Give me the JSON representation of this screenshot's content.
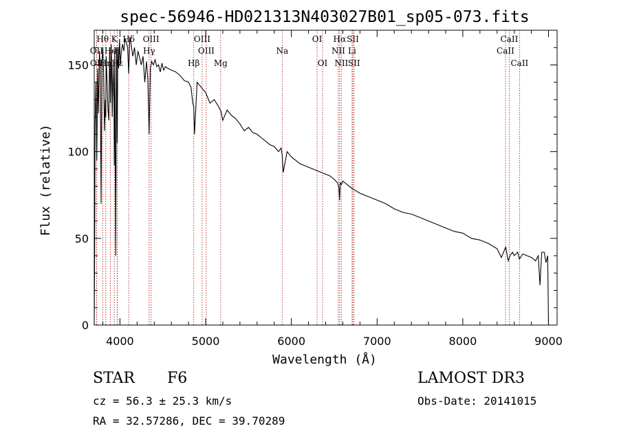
{
  "chart_data": {
    "type": "line",
    "title": "spec-56946-HD021313N403027B01_sp05-073.fits",
    "xlabel": "Wavelength (Å)",
    "ylabel": "Flux (relative)",
    "xlim": [
      3700,
      9100
    ],
    "ylim": [
      0,
      170
    ],
    "xticks": [
      4000,
      5000,
      6000,
      7000,
      8000,
      9000
    ],
    "yticks": [
      0,
      50,
      100,
      150
    ],
    "grid": false,
    "series": [
      {
        "name": "spectrum",
        "x": [
          3700,
          3705,
          3710,
          3720,
          3730,
          3740,
          3750,
          3760,
          3770,
          3780,
          3790,
          3800,
          3810,
          3820,
          3830,
          3835,
          3840,
          3850,
          3860,
          3870,
          3880,
          3889,
          3900,
          3910,
          3920,
          3930,
          3934,
          3940,
          3950,
          3960,
          3968,
          3975,
          3985,
          3995,
          4005,
          4015,
          4030,
          4045,
          4060,
          4075,
          4090,
          4102,
          4115,
          4130,
          4150,
          4170,
          4190,
          4210,
          4230,
          4250,
          4270,
          4290,
          4310,
          4325,
          4340,
          4355,
          4370,
          4390,
          4410,
          4430,
          4450,
          4470,
          4490,
          4510,
          4530,
          4560,
          4600,
          4650,
          4700,
          4750,
          4800,
          4830,
          4850,
          4861,
          4870,
          4900,
          4950,
          5000,
          5050,
          5100,
          5150,
          5180,
          5200,
          5250,
          5300,
          5350,
          5400,
          5450,
          5500,
          5550,
          5600,
          5650,
          5700,
          5750,
          5800,
          5850,
          5880,
          5893,
          5905,
          5950,
          6000,
          6100,
          6200,
          6300,
          6400,
          6450,
          6500,
          6540,
          6555,
          6563,
          6570,
          6585,
          6600,
          6650,
          6700,
          6800,
          6900,
          7000,
          7100,
          7200,
          7300,
          7400,
          7500,
          7600,
          7700,
          7800,
          7900,
          8000,
          8100,
          8200,
          8300,
          8400,
          8450,
          8500,
          8530,
          8550,
          8580,
          8600,
          8640,
          8660,
          8700,
          8750,
          8800,
          8850,
          8880,
          8900,
          8920,
          8950,
          8970,
          8990,
          9000
        ],
        "values": [
          0,
          42,
          115,
          140,
          95,
          148,
          122,
          158,
          150,
          70,
          152,
          160,
          145,
          112,
          130,
          120,
          155,
          140,
          125,
          118,
          160,
          128,
          162,
          120,
          150,
          130,
          92,
          158,
          40,
          160,
          105,
          160,
          148,
          165,
          150,
          157,
          162,
          158,
          165,
          163,
          160,
          145,
          166,
          162,
          155,
          160,
          150,
          158,
          154,
          150,
          155,
          140,
          152,
          142,
          110,
          148,
          152,
          150,
          153,
          149,
          150,
          146,
          151,
          147,
          149,
          148,
          147,
          146,
          144,
          141,
          140,
          137,
          128,
          126,
          110,
          140,
          137,
          134,
          128,
          130,
          126,
          123,
          118,
          124,
          121,
          119,
          116,
          112,
          114,
          111,
          110,
          108,
          106,
          104,
          103,
          100,
          102,
          98,
          88,
          100,
          97,
          93,
          91,
          89,
          87,
          86,
          84,
          82,
          79,
          72,
          82,
          81,
          83,
          81,
          79,
          76,
          74,
          72,
          70,
          67,
          65,
          64,
          62,
          60,
          58,
          56,
          54,
          53,
          50,
          49,
          47,
          44,
          39,
          45,
          37,
          40,
          42,
          40,
          42,
          38,
          41,
          40,
          39,
          37,
          40,
          23,
          42,
          42,
          36,
          40,
          0
        ]
      }
    ],
    "line_markers": [
      {
        "label": "Hθ",
        "x": 3798,
        "row": 1
      },
      {
        "label": "OII",
        "x": 3727,
        "row": 2
      },
      {
        "label": "OII",
        "x": 3729,
        "row": 3
      },
      {
        "label": "He",
        "x": 3889,
        "row": 2
      },
      {
        "label": "Hn",
        "x": 3835,
        "row": 3
      },
      {
        "label": "K",
        "x": 3934,
        "row": 1
      },
      {
        "label": "H",
        "x": 3968,
        "row": 2
      },
      {
        "label": "Hε",
        "x": 3970,
        "row": 3
      },
      {
        "label": "Hδ",
        "x": 4102,
        "row": 1
      },
      {
        "label": "OIII",
        "x": 4363,
        "row": 1
      },
      {
        "label": "Hγ",
        "x": 4340,
        "row": 2
      },
      {
        "label": "OIII",
        "x": 4959,
        "row": 1
      },
      {
        "label": "OIII",
        "x": 5007,
        "row": 2
      },
      {
        "label": "Hβ",
        "x": 4861,
        "row": 3
      },
      {
        "label": "Mg",
        "x": 5175,
        "row": 3
      },
      {
        "label": "Na",
        "x": 5893,
        "row": 2
      },
      {
        "label": "OI",
        "x": 6300,
        "row": 1
      },
      {
        "label": "OI",
        "x": 6364,
        "row": 3
      },
      {
        "label": "Hα",
        "x": 6563,
        "row": 1
      },
      {
        "label": "NII",
        "x": 6548,
        "row": 2
      },
      {
        "label": "NII",
        "x": 6583,
        "row": 3
      },
      {
        "label": "SII",
        "x": 6717,
        "row": 1
      },
      {
        "label": "Li",
        "x": 6708,
        "row": 2
      },
      {
        "label": "SII",
        "x": 6731,
        "row": 3
      },
      {
        "label": "CaII",
        "x": 8542,
        "row": 1
      },
      {
        "label": "CaII",
        "x": 8498,
        "row": 2
      },
      {
        "label": "CaII",
        "x": 8662,
        "row": 3
      }
    ]
  },
  "info": {
    "object_class": "STAR",
    "subclass": "F6",
    "survey": "LAMOST DR3",
    "redshift": "cz = 56.3 ± 25.3 km/s",
    "obs_date": "Obs-Date: 20141015",
    "coords": "RA =  32.57286, DEC =  39.70289"
  }
}
